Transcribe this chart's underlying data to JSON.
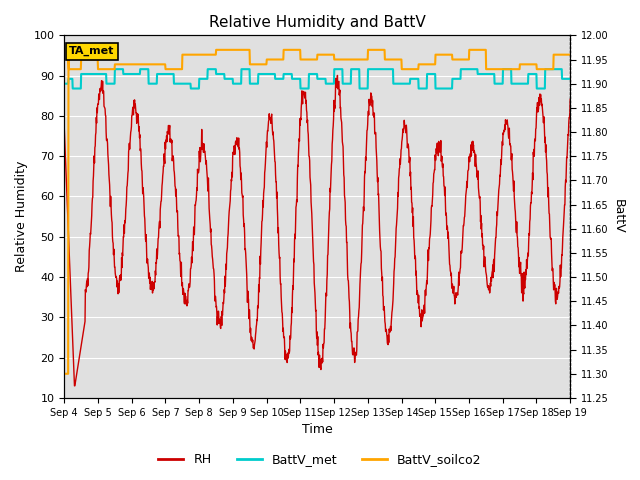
{
  "title": "Relative Humidity and BattV",
  "xlabel": "Time",
  "ylabel_left": "Relative Humidity",
  "ylabel_right": "BattV",
  "ylim_left": [
    10,
    100
  ],
  "ylim_right": [
    11.25,
    12.0
  ],
  "yticks_left": [
    10,
    20,
    30,
    40,
    50,
    60,
    70,
    80,
    90,
    100
  ],
  "yticks_right": [
    11.25,
    11.3,
    11.35,
    11.4,
    11.45,
    11.5,
    11.55,
    11.6,
    11.65,
    11.7,
    11.75,
    11.8,
    11.85,
    11.9,
    11.95,
    12.0
  ],
  "xtick_labels": [
    "Sep 4",
    "Sep 5",
    "Sep 6",
    "Sep 7",
    "Sep 8",
    "Sep 9",
    "Sep 10",
    "Sep 11",
    "Sep 12",
    "Sep 13",
    "Sep 14",
    "Sep 15",
    "Sep 16",
    "Sep 17",
    "Sep 18",
    "Sep 19"
  ],
  "annotation_box": "TA_met",
  "annotation_box_color": "#FFD700",
  "background_color": "#E0E0E0",
  "grid_color": "#FFFFFF",
  "rh_color": "#CC0000",
  "battv_met_color": "#00CCCC",
  "battv_soilco2_color": "#FFA500",
  "rh_linewidth": 1.0,
  "battv_linewidth": 1.5,
  "figsize": [
    6.4,
    4.8
  ],
  "dpi": 100
}
